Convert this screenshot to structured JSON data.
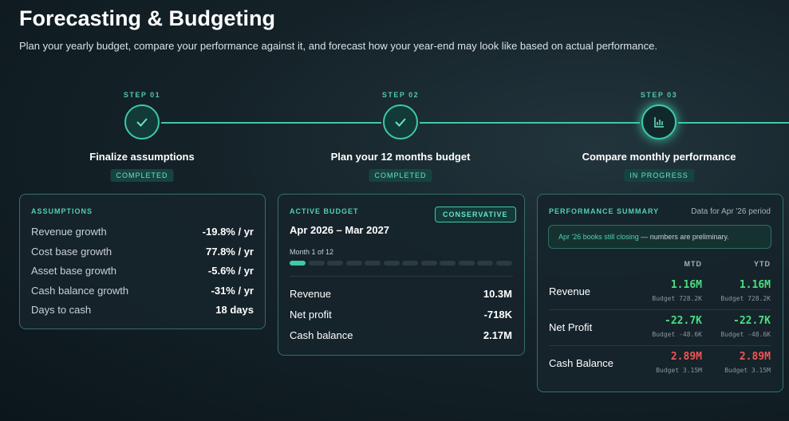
{
  "header": {
    "title": "Forecasting & Budgeting",
    "subtitle": "Plan your yearly budget, compare your performance against it, and forecast how your year-end may look like based on actual performance."
  },
  "steps": [
    {
      "step": "STEP 01",
      "label": "Finalize assumptions",
      "status": "COMPLETED"
    },
    {
      "step": "STEP 02",
      "label": "Plan your 12 months budget",
      "status": "COMPLETED"
    },
    {
      "step": "STEP 03",
      "label": "Compare monthly performance",
      "status": "IN PROGRESS"
    }
  ],
  "assumptions": {
    "title": "ASSUMPTIONS",
    "rows": [
      [
        "Revenue growth",
        "-19.8% / yr"
      ],
      [
        "Cost base growth",
        "77.8% / yr"
      ],
      [
        "Asset base growth",
        "-5.6% / yr"
      ],
      [
        "Cash balance growth",
        "-31% / yr"
      ],
      [
        "Days to cash",
        "18 days"
      ]
    ]
  },
  "budget": {
    "title": "ACTIVE BUDGET",
    "badge": "CONSERVATIVE",
    "period": "Apr 2026 – Mar 2027",
    "progress": "Month 1 of 12",
    "rows": [
      [
        "Revenue",
        "10.3M"
      ],
      [
        "Net profit",
        "-718K"
      ],
      [
        "Cash balance",
        "2.17M"
      ]
    ]
  },
  "performance": {
    "title": "PERFORMANCE SUMMARY",
    "note": "Data for Apr '26 period",
    "alert_highlight": "Apr '26 books still closing",
    "alert_text": "— numbers are preliminary.",
    "columns": [
      "MTD",
      "YTD"
    ],
    "rows": [
      {
        "label": "Revenue",
        "mtd": "1.16M",
        "mtd_budget": "Budget 728.2K",
        "ytd": "1.16M",
        "ytd_budget": "Budget 728.2K"
      },
      {
        "label": "Net Profit",
        "mtd": "-22.7K",
        "mtd_budget": "Budget -48.6K",
        "ytd": "-22.7K",
        "ytd_budget": "Budget -48.6K"
      },
      {
        "label": "Cash Balance",
        "mtd": "2.89M",
        "mtd_budget": "Budget 3.15M",
        "ytd": "2.89M",
        "ytd_budget": "Budget 3.15M"
      }
    ]
  }
}
